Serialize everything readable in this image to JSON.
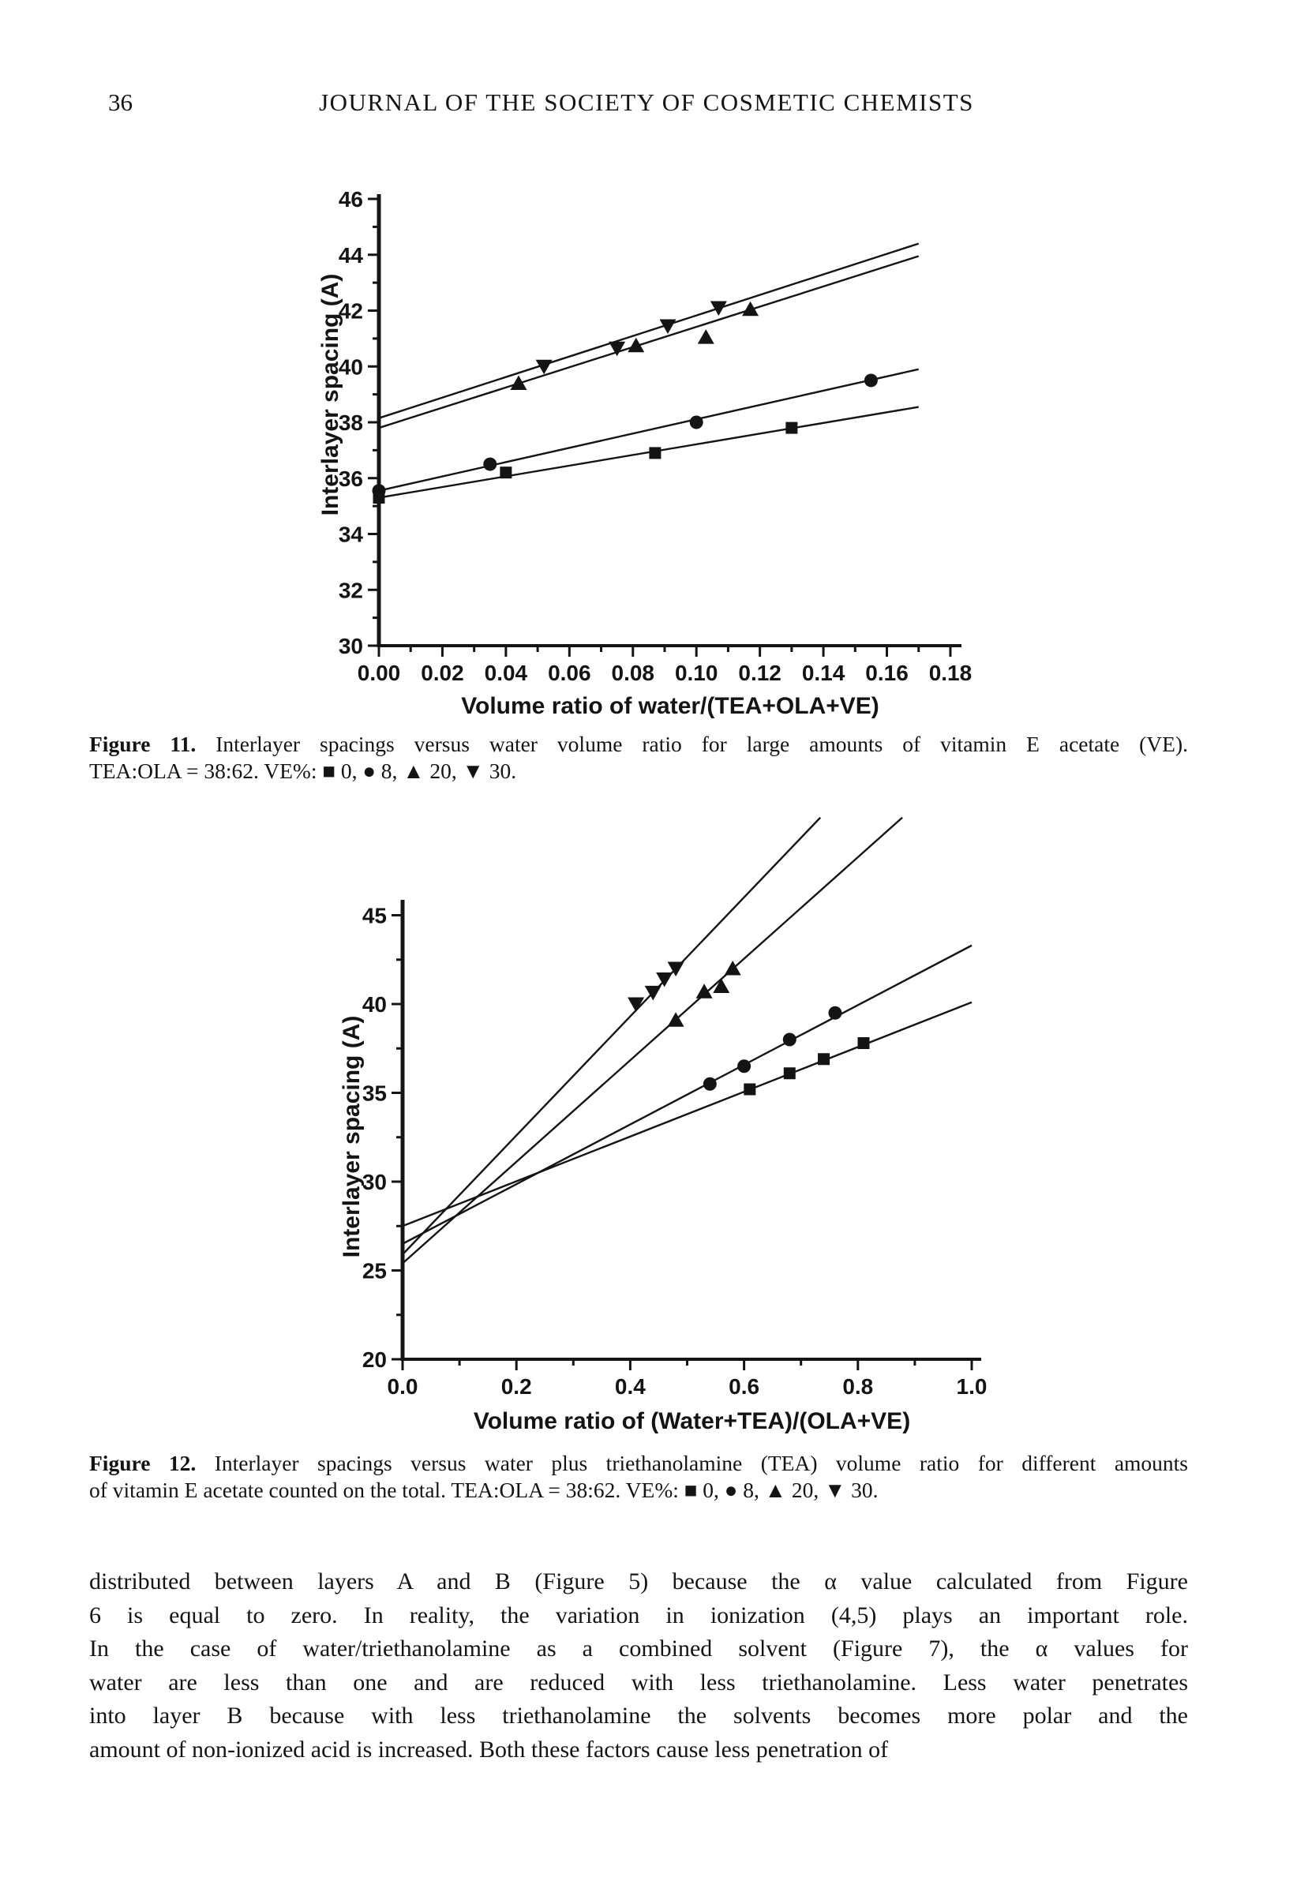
{
  "page": {
    "number": "36",
    "header": "JOURNAL OF THE SOCIETY OF COSMETIC CHEMISTS",
    "ink_color": "#141414",
    "background_color": "#ffffff"
  },
  "figure11": {
    "label": "Figure 11.",
    "line1": "Interlayer spacings versus water volume ratio for large amounts of vitamin E acetate (VE).",
    "line2": "TEA:OLA = 38:62. VE%: ■ 0, ● 8, ▲ 20, ▼ 30."
  },
  "figure12": {
    "label": "Figure 12.",
    "line1": "Interlayer spacings versus water plus triethanolamine (TEA) volume ratio for different amounts",
    "line2": "of vitamin E acetate counted on the total. TEA:OLA = 38:62. VE%: ■ 0, ● 8, ▲ 20, ▼ 30."
  },
  "body_text": {
    "lines": [
      "distributed between layers A and B (Figure 5) because the α value calculated from Figure",
      "6 is equal to zero. In reality, the variation in ionization (4,5) plays an important role.",
      "In the case of water/triethanolamine as a combined solvent (Figure 7), the α values for",
      "water are less than one and are reduced with less triethanolamine. Less water penetrates",
      "into layer B because with less triethanolamine the solvents becomes more polar and the",
      "amount of non-ionized acid is increased. Both these factors cause less penetration of"
    ]
  },
  "chart_data": [
    {
      "id": "figure11",
      "type": "scatter",
      "title": "",
      "xlabel": "Volume ratio of water/(TEA+OLA+VE)",
      "ylabel": "Interlayer spacing (A)",
      "xlim": [
        0,
        0.18
      ],
      "ylim": [
        30,
        46
      ],
      "grid": false,
      "legend_position": "none (legend given in caption)",
      "x_ticks": {
        "values": [
          0,
          0.02,
          0.04,
          0.06,
          0.08,
          0.1,
          0.12,
          0.14,
          0.16,
          0.18
        ],
        "labels": [
          "0.00",
          "0.02",
          "0.04",
          "0.06",
          "0.08",
          "0.10",
          "0.12",
          "0.14",
          "0.16",
          "0.18"
        ]
      },
      "x_minor_ticks": [
        0.01,
        0.03,
        0.05,
        0.07,
        0.09,
        0.11,
        0.13,
        0.15,
        0.17
      ],
      "y_ticks": {
        "values": [
          30,
          32,
          34,
          36,
          38,
          40,
          42,
          44,
          46
        ],
        "labels": [
          "30",
          "32",
          "34",
          "36",
          "38",
          "40",
          "42",
          "44",
          "46"
        ]
      },
      "y_minor_ticks": [
        31,
        33,
        35,
        37,
        39,
        41,
        43,
        45
      ],
      "series": [
        {
          "name": "VE% 0",
          "marker": "square",
          "points": [
            [
              0,
              35.3
            ],
            [
              0.04,
              36.2
            ],
            [
              0.087,
              36.9
            ],
            [
              0.13,
              37.8
            ]
          ],
          "trend": [
            [
              0,
              35.3
            ],
            [
              0.17,
              38.55
            ]
          ]
        },
        {
          "name": "VE% 8",
          "marker": "circle",
          "points": [
            [
              0,
              35.55
            ],
            [
              0.035,
              36.5
            ],
            [
              0.1,
              38.0
            ],
            [
              0.155,
              39.5
            ]
          ],
          "trend": [
            [
              0,
              35.55
            ],
            [
              0.17,
              39.9
            ]
          ]
        },
        {
          "name": "VE% 20",
          "marker": "triangle-up",
          "points": [
            [
              0.044,
              39.4
            ],
            [
              0.081,
              40.75
            ],
            [
              0.103,
              41.05
            ],
            [
              0.117,
              42.05
            ]
          ],
          "trend": [
            [
              0,
              37.8
            ],
            [
              0.17,
              43.95
            ]
          ]
        },
        {
          "name": "VE% 30",
          "marker": "triangle-down",
          "points": [
            [
              0.052,
              40.0
            ],
            [
              0.075,
              40.65
            ],
            [
              0.091,
              41.45
            ],
            [
              0.107,
              42.1
            ]
          ],
          "trend": [
            [
              0,
              38.15
            ],
            [
              0.17,
              44.4
            ]
          ]
        }
      ]
    },
    {
      "id": "figure12",
      "type": "scatter",
      "title": "",
      "xlabel": "Volume ratio of (Water+TEA)/(OLA+VE)",
      "ylabel": "Interlayer spacing (A)",
      "xlim": [
        0,
        1.0
      ],
      "ylim": [
        20,
        45
      ],
      "grid": false,
      "legend_position": "none (legend given in caption)",
      "x_ticks": {
        "values": [
          0,
          0.2,
          0.4,
          0.6,
          0.8,
          1.0
        ],
        "labels": [
          "0.0",
          "0.2",
          "0.4",
          "0.6",
          "0.8",
          "1.0"
        ]
      },
      "x_minor_ticks": [
        0.1,
        0.3,
        0.5,
        0.7,
        0.9
      ],
      "y_ticks": {
        "values": [
          20,
          25,
          30,
          35,
          40,
          45
        ],
        "labels": [
          "20",
          "25",
          "30",
          "35",
          "40",
          "45"
        ]
      },
      "y_minor_ticks": [
        22.5,
        27.5,
        32.5,
        37.5,
        42.5
      ],
      "series": [
        {
          "name": "VE% 0",
          "marker": "square",
          "points": [
            [
              0.61,
              35.2
            ],
            [
              0.68,
              36.1
            ],
            [
              0.74,
              36.9
            ],
            [
              0.81,
              37.8
            ]
          ],
          "trend": [
            [
              0,
              27.5
            ],
            [
              1.0,
              40.1
            ]
          ]
        },
        {
          "name": "VE% 8",
          "marker": "circle",
          "points": [
            [
              0.54,
              35.5
            ],
            [
              0.6,
              36.5
            ],
            [
              0.68,
              38.0
            ],
            [
              0.76,
              39.5
            ]
          ],
          "trend": [
            [
              0,
              26.5
            ],
            [
              1.0,
              43.3
            ]
          ]
        },
        {
          "name": "VE% 20",
          "marker": "triangle-up",
          "points": [
            [
              0.48,
              39.1
            ],
            [
              0.53,
              40.7
            ],
            [
              0.56,
              41.0
            ],
            [
              0.58,
              42.0
            ]
          ],
          "trend": [
            [
              0,
              25.4
            ],
            [
              0.878,
              50.5
            ]
          ]
        },
        {
          "name": "VE% 30",
          "marker": "triangle-down",
          "points": [
            [
              0.41,
              40.0
            ],
            [
              0.44,
              40.65
            ],
            [
              0.46,
              41.4
            ],
            [
              0.48,
              42.0
            ]
          ],
          "trend": [
            [
              0,
              25.9
            ],
            [
              0.734,
              50.5
            ]
          ]
        }
      ]
    }
  ]
}
